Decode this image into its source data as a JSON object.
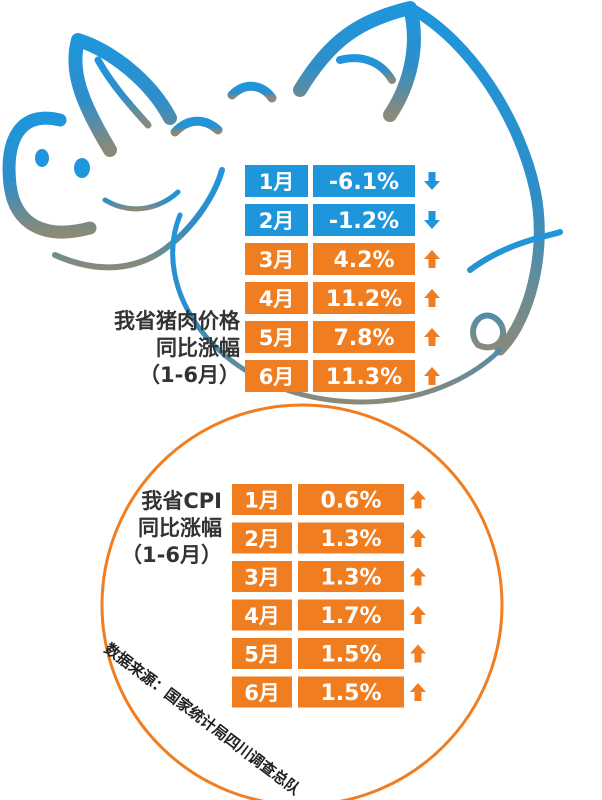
{
  "colors": {
    "pork_primary": "#f07d1f",
    "pork_negative": "#1e96dc",
    "cpi": "#f07d1f",
    "pig_outline": "#1e96dc",
    "cpi_circle": "#f07d1f"
  },
  "chart_data": [
    {
      "type": "table",
      "title_lines": [
        "我省猪肉价格",
        "同比涨幅",
        "（1-6月）"
      ],
      "categories": [
        "1月",
        "2月",
        "3月",
        "4月",
        "5月",
        "6月"
      ],
      "value_labels": [
        "-6.1%",
        "-1.2%",
        "4.2%",
        "11.2%",
        "7.8%",
        "11.3%"
      ],
      "values": [
        -6.1,
        -1.2,
        4.2,
        11.2,
        7.8,
        11.3
      ],
      "unit": "%"
    },
    {
      "type": "table",
      "title_lines": [
        "我省CPI",
        "同比涨幅",
        "（1-6月）"
      ],
      "categories": [
        "1月",
        "2月",
        "3月",
        "4月",
        "5月",
        "6月"
      ],
      "value_labels": [
        "0.6%",
        "1.3%",
        "1.3%",
        "1.7%",
        "1.5%",
        "1.5%"
      ],
      "values": [
        0.6,
        1.3,
        1.3,
        1.7,
        1.5,
        1.5
      ],
      "unit": "%"
    }
  ],
  "source": "数据来源：国家统计局四川调查总队"
}
